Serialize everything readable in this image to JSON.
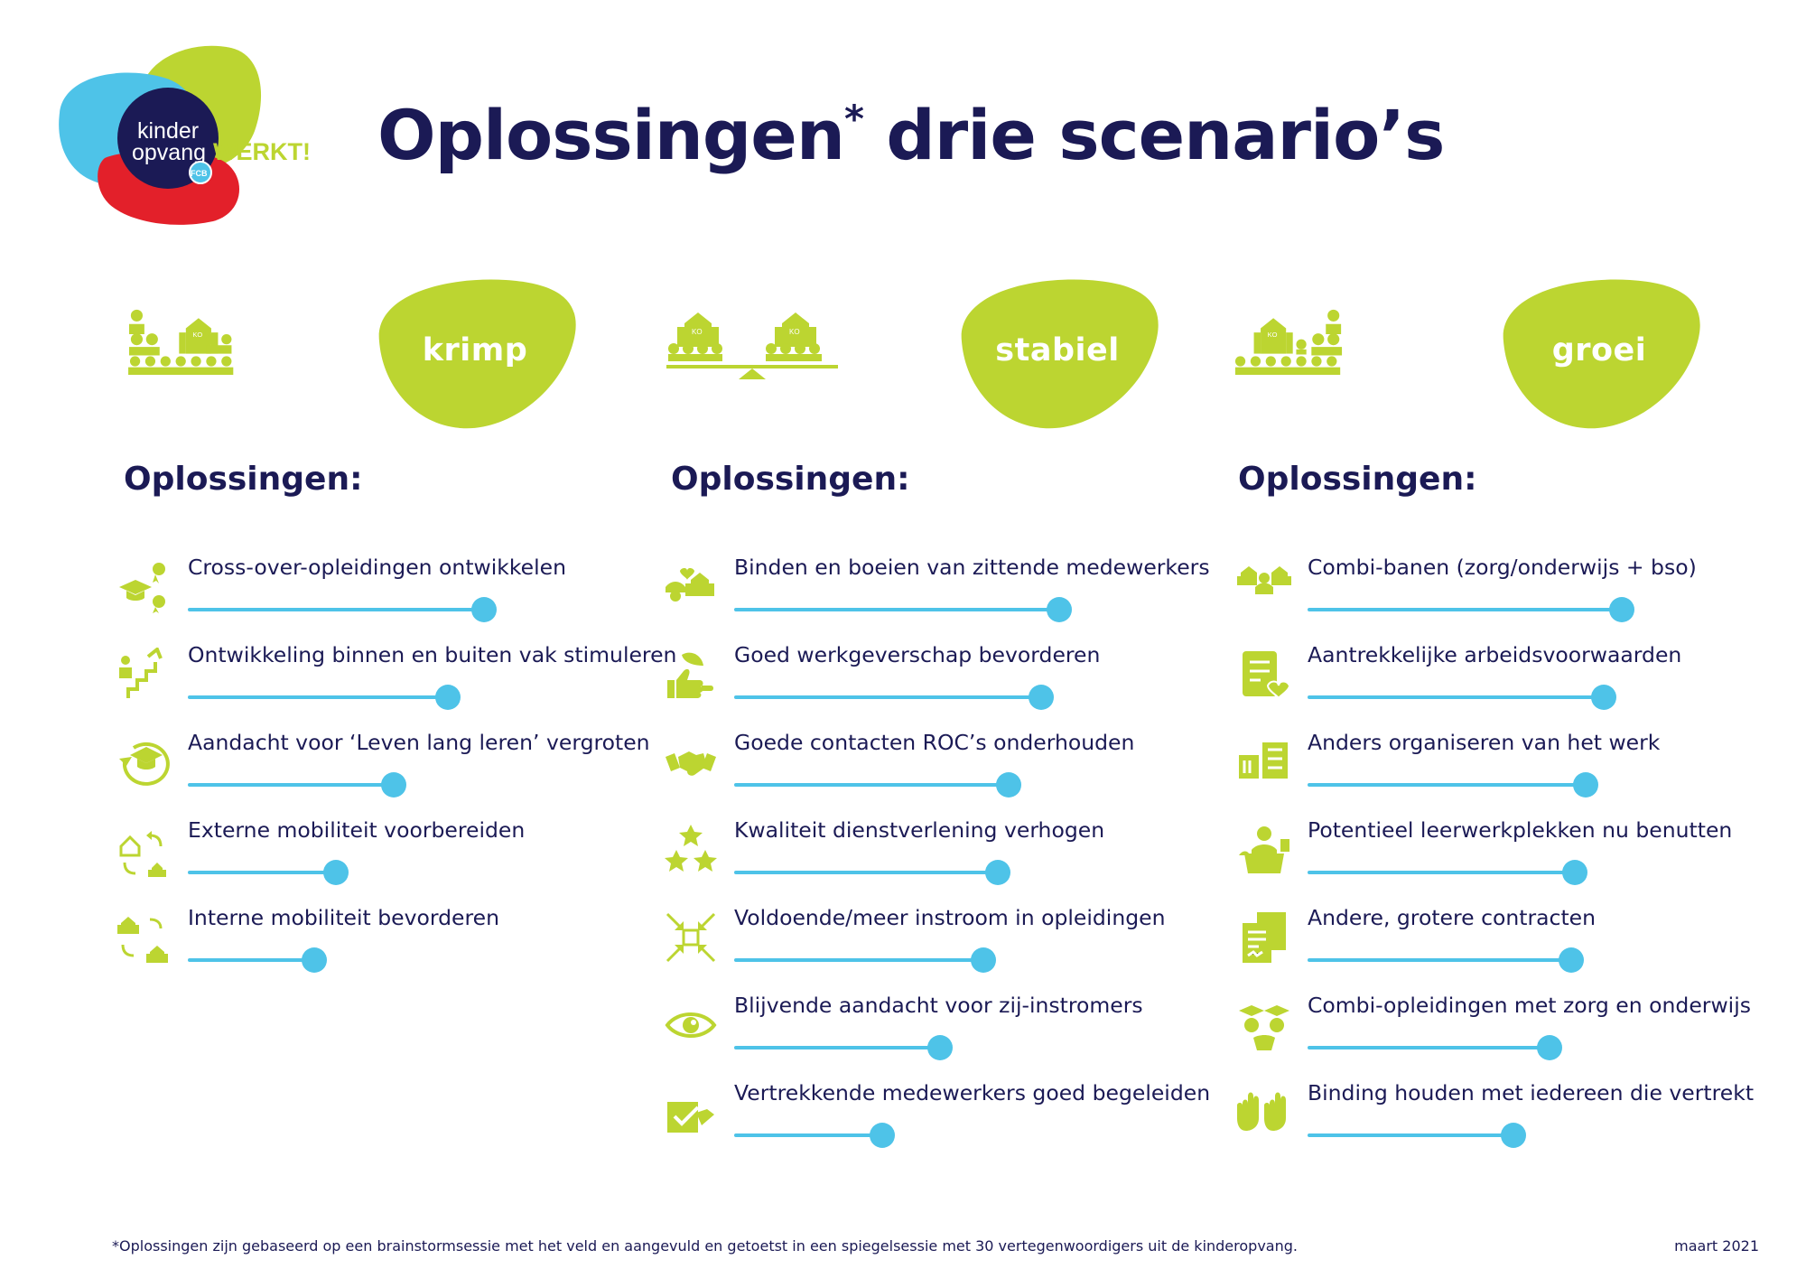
{
  "logo": {
    "line1": "kinder",
    "line2": "opvang",
    "tag": "WERKT!",
    "badge": "FCB"
  },
  "title": {
    "main": "Oplossingen",
    "star": "*",
    "rest": " drie scenario’s"
  },
  "colors": {
    "navy": "#1b1a55",
    "lime": "#bcd531",
    "blue": "#4ec3e8",
    "red": "#e3202a"
  },
  "columns": [
    {
      "scenario": "krimp",
      "heading": "Oplossingen:",
      "items": [
        {
          "label": "Cross-over-opleidingen ontwikkelen",
          "icon": "graduation-cap-certificates-icon",
          "level": 0.82
        },
        {
          "label": "Ontwikkeling binnen en buiten vak stimuleren",
          "icon": "career-stairs-icon",
          "level": 0.72
        },
        {
          "label": "Aandacht voor ‘Leven lang leren’ vergroten",
          "icon": "lifelong-learning-icon",
          "level": 0.57
        },
        {
          "label": "Externe mobiliteit voorbereiden",
          "icon": "external-mobility-icon",
          "level": 0.41
        },
        {
          "label": "Interne mobiliteit bevorderen",
          "icon": "internal-mobility-icon",
          "level": 0.35
        }
      ]
    },
    {
      "scenario": "stabiel",
      "heading": "Oplossingen:",
      "items": [
        {
          "label": "Binden en boeien van zittende medewerkers",
          "icon": "staff-retention-icon",
          "level": 0.9
        },
        {
          "label": "Goed werkgeverschap bevorderen",
          "icon": "thumbs-up-icon",
          "level": 0.85
        },
        {
          "label": "Goede contacten ROC’s onderhouden",
          "icon": "handshake-icon",
          "level": 0.76
        },
        {
          "label": "Kwaliteit dienstverlening verhogen",
          "icon": "stars-icon",
          "level": 0.73
        },
        {
          "label": "Voldoende/meer instroom in opleidingen",
          "icon": "inflow-arrows-icon",
          "level": 0.69
        },
        {
          "label": "Blijvende aandacht voor zij-instromers",
          "icon": "eye-icon",
          "level": 0.57
        },
        {
          "label": "Vertrekkende medewerkers goed begeleiden",
          "icon": "checked-box-icon",
          "level": 0.41
        }
      ]
    },
    {
      "scenario": "groei",
      "heading": "Oplossingen:",
      "items": [
        {
          "label": "Combi-banen (zorg/onderwijs + bso)",
          "icon": "combined-jobs-icon",
          "level": 0.87
        },
        {
          "label": "Aantrekkelijke arbeidsvoorwaarden",
          "icon": "contract-heart-icon",
          "level": 0.82
        },
        {
          "label": "Anders organiseren van het werk",
          "icon": "organize-work-icon",
          "level": 0.77
        },
        {
          "label": "Potentieel leerwerkplekken nu benutten",
          "icon": "traineeship-icon",
          "level": 0.74
        },
        {
          "label": "Andere, grotere contracten",
          "icon": "contracts-icon",
          "level": 0.73
        },
        {
          "label": "Combi-opleidingen met zorg en onderwijs",
          "icon": "combined-education-icon",
          "level": 0.67
        },
        {
          "label": "Binding houden met iedereen die vertrekt",
          "icon": "waving-hands-icon",
          "level": 0.57
        }
      ]
    }
  ],
  "footnote": "*Oplossingen zijn gebaseerd op een brainstormsessie met het veld en aangevuld en getoetst in een spiegelsessie met 30 vertegenwoordigers uit de kinderopvang.",
  "date": "maart 2021"
}
